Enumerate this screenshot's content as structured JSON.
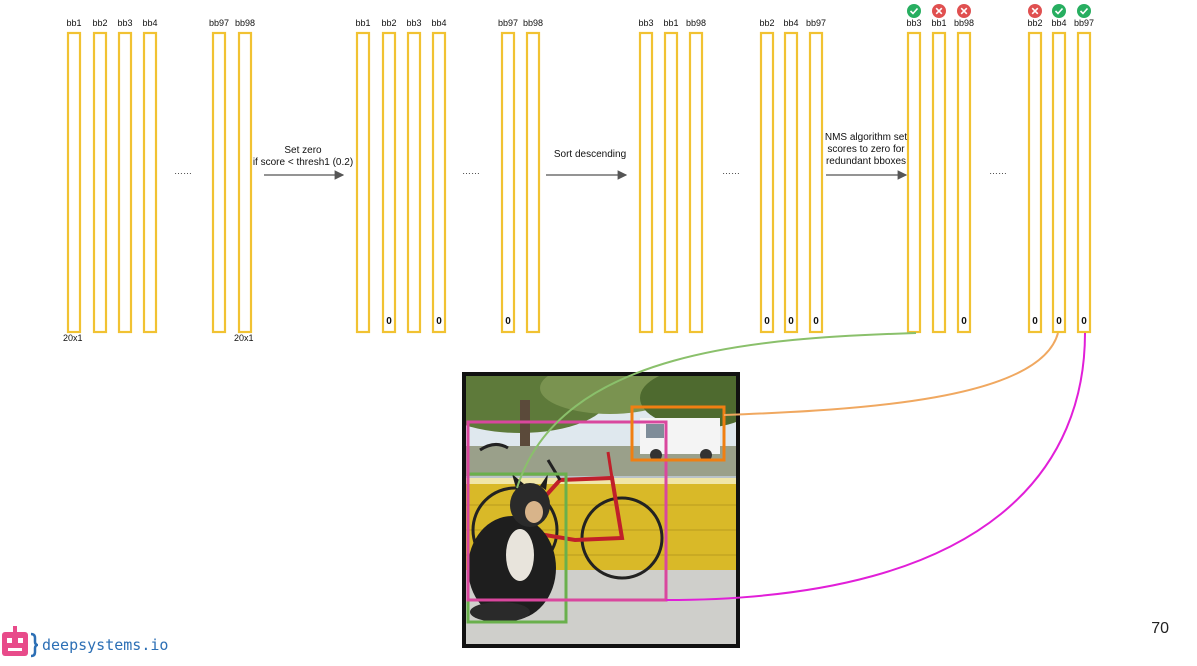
{
  "groups": [
    {
      "labels": [
        "bb1",
        "bb2",
        "bb3",
        "bb4",
        "bb97",
        "bb98"
      ],
      "values": [
        "",
        "",
        "",
        "",
        "",
        ""
      ],
      "dots": "……"
    },
    {
      "labels": [
        "bb1",
        "bb2",
        "bb3",
        "bb4",
        "bb97",
        "bb98"
      ],
      "values": [
        "",
        "0",
        "",
        "0",
        "0",
        ""
      ],
      "dots": "……"
    },
    {
      "labels": [
        "bb3",
        "bb1",
        "bb98",
        "bb2",
        "bb4",
        "bb97"
      ],
      "values": [
        "",
        "",
        "",
        "0",
        "0",
        "0"
      ],
      "dots": "……"
    },
    {
      "labels": [
        "bb3",
        "bb1",
        "bb98",
        "bb2",
        "bb4",
        "bb97"
      ],
      "values": [
        "",
        "",
        "0",
        "0",
        "0",
        "0"
      ],
      "status": [
        "check",
        "cross",
        "cross",
        "cross",
        "check",
        "check"
      ],
      "dots": "……"
    }
  ],
  "dims": [
    "20x1",
    "20x1"
  ],
  "arrows": [
    {
      "lines": [
        "Set zero",
        "if score < thresh1 (0.2)"
      ]
    },
    {
      "lines": [
        "Sort descending"
      ]
    },
    {
      "lines": [
        "NMS algorithm set",
        "scores to zero for",
        "redundant bboxes"
      ]
    }
  ],
  "photo": {
    "description_icon": "dog-bicycle-truck-photo"
  },
  "colors": {
    "column": "#f1c232",
    "green": "#8ac06b",
    "orange": "#f0a860",
    "magenta": "#e11fd8",
    "box_green": "#6ab04c",
    "box_pink": "#d9479e",
    "box_orange": "#f07f12",
    "check": "#27ae60",
    "cross": "#e05050"
  },
  "footer": {
    "brand": "deepsystems.io",
    "page": "70"
  }
}
